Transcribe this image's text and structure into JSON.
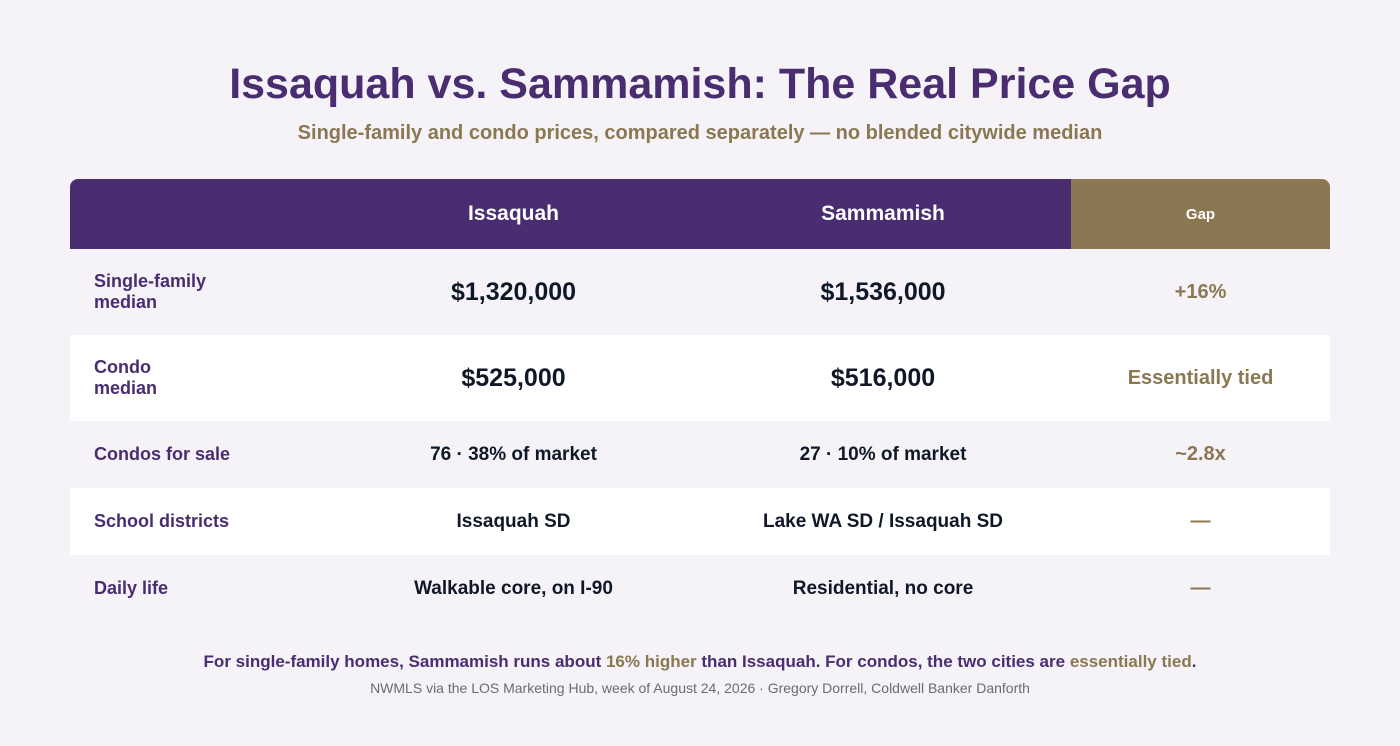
{
  "title": "Issaquah vs. Sammamish: The Real Price Gap",
  "subtitle": "Single-family and condo prices, compared separately — no blended citywide median",
  "table": {
    "headers": [
      "",
      "Issaquah",
      "Sammamish",
      "Gap"
    ],
    "rows": [
      {
        "label": "Single-family median",
        "issaquah": "$1,320,000",
        "sammamish": "$1,536,000",
        "gap": "+16%"
      },
      {
        "label": "Condo median",
        "issaquah": "$525,000",
        "sammamish": "$516,000",
        "gap": "Essentially tied"
      },
      {
        "label": "Condos for sale",
        "issaquah": "76 · 38% of market",
        "sammamish": "27 · 10% of market",
        "gap": "~2.8x"
      },
      {
        "label": "School districts",
        "issaquah": "Issaquah SD",
        "sammamish": "Lake WA SD / Issaquah SD",
        "gap": "—"
      },
      {
        "label": "Daily life",
        "issaquah": "Walkable core, on I-90",
        "sammamish": "Residential, no core",
        "gap": "—"
      }
    ]
  },
  "footer": {
    "part1": "For single-family homes, Sammamish runs about ",
    "highlight1": "16% higher",
    "part2": " than Issaquah. For condos, the two cities are ",
    "highlight2": "essentially tied",
    "part3": "."
  },
  "source": "NWMLS via the LOS Marketing Hub, week of August 24, 2026 · Gregory Dorrell, Coldwell Banker Danforth",
  "colors": {
    "primary": "#4a2c70",
    "accent": "#8b7752",
    "background": "#f5f3f8"
  }
}
